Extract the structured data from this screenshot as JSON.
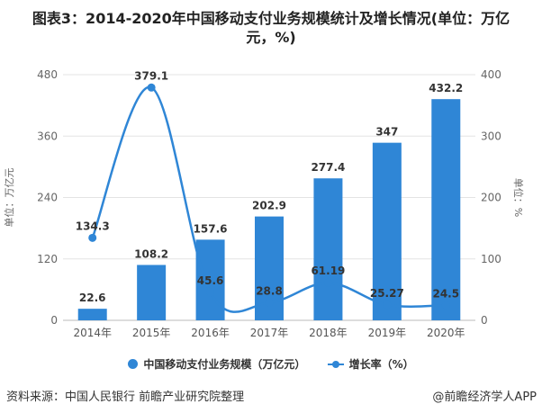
{
  "title": "图表3：2014-2020年中国移动支付业务规模统计及增长情况(单位：万亿元，%)",
  "source": "资料来源：中国人民银行 前瞻产业研究院整理",
  "credit": "@前瞻经济学人APP",
  "chart_data": {
    "type": "bar+line",
    "categories": [
      "2014年",
      "2015年",
      "2016年",
      "2017年",
      "2018年",
      "2019年",
      "2020年"
    ],
    "series": [
      {
        "name": "中国移动支付业务规模（万亿元）",
        "type": "bar",
        "axis": "left",
        "values": [
          22.6,
          108.2,
          157.6,
          202.9,
          277.4,
          347,
          432.2
        ],
        "labels": [
          "22.6",
          "108.2",
          "157.6",
          "202.9",
          "277.4",
          "347",
          "432.2"
        ],
        "color": "#2f86d6"
      },
      {
        "name": "增长率（%）",
        "type": "line",
        "axis": "right",
        "values": [
          134.3,
          379.1,
          45.6,
          28.8,
          61.19,
          25.27,
          24.5
        ],
        "labels": [
          "134.3",
          "379.1",
          "45.6",
          "28.8",
          "61.19",
          "25.27",
          "24.5"
        ],
        "color": "#2f86d6"
      }
    ],
    "ylabel_left": "单位：万亿元",
    "ylabel_right": "单位：%",
    "ylim_left": [
      0,
      480
    ],
    "yticks_left": [
      "0",
      "120",
      "240",
      "360",
      "480"
    ],
    "ylim_right": [
      0,
      400
    ],
    "yticks_right": [
      "0",
      "100",
      "200",
      "300",
      "400"
    ],
    "grid": true,
    "legend": "bottom"
  }
}
